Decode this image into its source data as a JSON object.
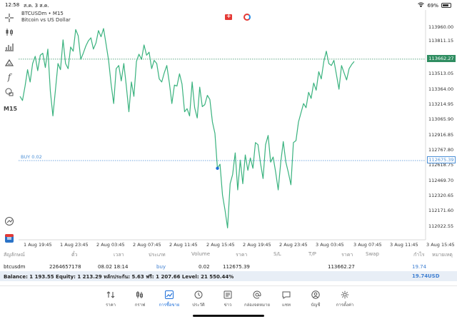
{
  "status_bar": {
    "time": "12:58",
    "date": "ส.ค. 3 ส.ค.",
    "battery": "69%"
  },
  "toolbar": {
    "timeframe": "M15"
  },
  "chart_header": {
    "symbol": "BTCUSDm • M15",
    "description": "Bitcoin vs US Dollar"
  },
  "colors": {
    "line": "#39b27e",
    "price_line": "#2f8d61",
    "buy_line": "#4b8fd6",
    "accent": "#1e6fd9"
  },
  "price_tag": "113662.27",
  "buy_line_label": "BUY 0.02",
  "buy_line_price": "112675.39",
  "chart_data": {
    "type": "line",
    "x_tick_labels": [
      "1 Aug 19:45",
      "1 Aug 23:45",
      "2 Aug 03:45",
      "2 Aug 07:45",
      "2 Aug 11:45",
      "2 Aug 15:45",
      "2 Aug 19:45",
      "2 Aug 23:45",
      "3 Aug 03:45",
      "3 Aug 07:45",
      "3 Aug 11:45",
      "3 Aug 15:45"
    ],
    "y_tick_labels": [
      "113960.00",
      "113811.15",
      "113662.27",
      "113513.05",
      "113364.00",
      "113214.95",
      "113065.90",
      "112916.85",
      "112767.80",
      "112675.39",
      "112618.75",
      "112469.70",
      "112320.65",
      "112171.60",
      "112022.55"
    ],
    "ylim": [
      112022.55,
      113960.0
    ],
    "current_price": 113662.27,
    "buy_price": 112675.39,
    "buy_marker": {
      "index": 78,
      "value": 112600
    },
    "series": [
      {
        "values": [
          113300,
          113260,
          113400,
          113560,
          113440,
          113620,
          113690,
          113550,
          113700,
          113720,
          113580,
          113760,
          113350,
          113110,
          113360,
          113620,
          113560,
          113850,
          113620,
          113570,
          113780,
          113740,
          113950,
          113890,
          113660,
          113720,
          113790,
          113840,
          113870,
          113760,
          113820,
          113940,
          113880,
          113960,
          113810,
          113650,
          113420,
          113230,
          113570,
          113600,
          113450,
          113620,
          113400,
          113150,
          113440,
          113300,
          113640,
          113710,
          113660,
          113800,
          113700,
          113730,
          113570,
          113650,
          113620,
          113470,
          113440,
          113530,
          113600,
          113430,
          113230,
          113410,
          113400,
          113520,
          113420,
          113150,
          113180,
          113110,
          113440,
          113190,
          113090,
          113390,
          113200,
          113220,
          113310,
          113270,
          113050,
          112940,
          112600,
          112640,
          112340,
          112190,
          112020,
          112450,
          112540,
          112750,
          112390,
          112680,
          112450,
          112730,
          112580,
          112700,
          112600,
          112850,
          112830,
          112650,
          112500,
          112830,
          112920,
          112660,
          112710,
          112560,
          112390,
          112660,
          112860,
          112660,
          112560,
          112440,
          112850,
          112870,
          113050,
          113140,
          113230,
          113190,
          113340,
          113280,
          113430,
          113360,
          113540,
          113470,
          113640,
          113740,
          113620,
          113600,
          113650,
          113510,
          113370,
          113600,
          113530,
          113460,
          113570,
          113610,
          113640
        ]
      }
    ]
  },
  "table": {
    "headers": [
      "สัญลักษณ์",
      "ตั๋ว",
      "เวลา",
      "ประเภท",
      "Volume",
      "ราคา",
      "S/L",
      "T/P",
      "ราคา",
      "Swap",
      "กำไร",
      "หมายเหตุ"
    ],
    "row": {
      "symbol": "btcusdm",
      "ticket": "2264657178",
      "time": "08.02 18:14",
      "type": "buy",
      "volume": "0.02",
      "open_price": "112675.39",
      "current_price": "113662.27",
      "profit": "19.74"
    }
  },
  "summary": {
    "text": "Balance: 1 193.55 Equity: 1 213.29 หลักประกัน: 5.63 ฟรี: 1 207.66 Level: 21 550.44%",
    "profit": "19.74",
    "currency": "USD"
  },
  "nav": [
    {
      "label": "ราคา",
      "icon": "quotes-icon"
    },
    {
      "label": "กราฟ",
      "icon": "chart-icon"
    },
    {
      "label": "การซื้อขาย",
      "icon": "trade-icon"
    },
    {
      "label": "ประวัติ",
      "icon": "history-icon"
    },
    {
      "label": "ข่าว",
      "icon": "news-icon"
    },
    {
      "label": "กล่องจดหมาย",
      "icon": "mailbox-icon"
    },
    {
      "label": "แชท",
      "icon": "chat-icon"
    },
    {
      "label": "บัญชี",
      "icon": "account-icon"
    },
    {
      "label": "การตั้งค่า",
      "icon": "settings-icon"
    }
  ]
}
